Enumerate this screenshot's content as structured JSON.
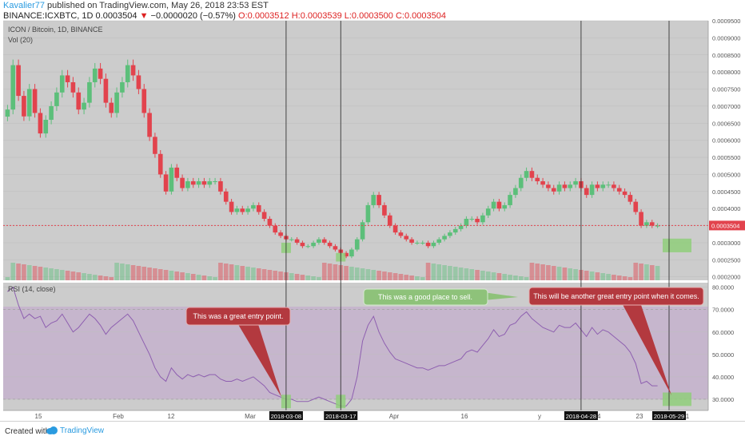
{
  "header": {
    "author": "Kavalier77",
    "published_text": "published on TradingView.com, May 26, 2018 23:53 EST",
    "symbol_line": "BINANCE:ICXBTC, 1D 0.0003504",
    "change": "−0.0000020 (−0.57%)",
    "ohlc": "O:0.0003512 H:0.0003539 L:0.0003500 C:0.0003504"
  },
  "footer": {
    "created": "Created with",
    "brand": "TradingView"
  },
  "colors": {
    "up": "#5cbf7a",
    "down": "#e2434d",
    "panel_bg": "#cccccc",
    "rsi_band": "#c4b2cd",
    "rsi_line": "#8e5fb0",
    "annotation_red": "#b3393f",
    "annotation_green": "#8ec27a",
    "zone_green": "#8fce7a"
  },
  "chart_data": [
    {
      "type": "candlestick",
      "title": "ICON / Bitcoin, 1D, BINANCE",
      "volume_label": "Vol (20)",
      "ylim": [
        0.00019,
        0.00095
      ],
      "y_ticks": [
        "0.0009500",
        "0.0009000",
        "0.0008500",
        "0.0008000",
        "0.0007500",
        "0.0007000",
        "0.0006500",
        "0.0006000",
        "0.0005500",
        "0.0005000",
        "0.0004500",
        "0.0004000",
        "0.0003500",
        "0.0003000",
        "0.0002500",
        "0.0002000"
      ],
      "last_price_label": "0.0003504",
      "last_price": 0.0003504,
      "x_ticks": [
        "15",
        "Feb",
        "12",
        "Mar",
        "2",
        "Apr",
        "16",
        "y",
        "14",
        "23",
        "1"
      ],
      "date_markers": [
        "2018-03-08",
        "2018-03-17",
        "2018-04-28",
        "2018-05-29"
      ],
      "closes": [
        0.00069,
        0.00082,
        0.00073,
        0.00067,
        0.00075,
        0.00068,
        0.00062,
        0.00066,
        0.0007,
        0.00074,
        0.00079,
        0.00077,
        0.00074,
        0.00069,
        0.00071,
        0.00077,
        0.00081,
        0.00078,
        0.00071,
        0.00068,
        0.00074,
        0.00077,
        0.00082,
        0.00079,
        0.00075,
        0.00068,
        0.00061,
        0.00056,
        0.0005,
        0.00045,
        0.00052,
        0.00049,
        0.00046,
        0.00048,
        0.00047,
        0.00048,
        0.00047,
        0.00048,
        0.00048,
        0.00045,
        0.00042,
        0.00039,
        0.0004,
        0.00039,
        0.0004,
        0.00041,
        0.00039,
        0.00037,
        0.00035,
        0.00033,
        0.00032,
        0.00031,
        0.00031,
        0.0003,
        0.00029,
        0.00029,
        0.0003,
        0.00031,
        0.0003,
        0.00029,
        0.00028,
        0.00027,
        0.00026,
        0.00028,
        0.00031,
        0.00036,
        0.00041,
        0.00044,
        0.00041,
        0.00038,
        0.00035,
        0.00033,
        0.00032,
        0.00031,
        0.0003,
        0.0003,
        0.0003,
        0.00029,
        0.0003,
        0.00031,
        0.00032,
        0.00033,
        0.00034,
        0.00035,
        0.00037,
        0.00037,
        0.00036,
        0.00038,
        0.0004,
        0.00042,
        0.0004,
        0.00041,
        0.00044,
        0.00046,
        0.00049,
        0.00051,
        0.00049,
        0.00048,
        0.00047,
        0.00046,
        0.00045,
        0.00047,
        0.00046,
        0.00047,
        0.00048,
        0.00046,
        0.00044,
        0.00047,
        0.00046,
        0.00047,
        0.00047,
        0.00046,
        0.00045,
        0.00044,
        0.00042,
        0.00039,
        0.00035,
        0.00036,
        0.00035,
        0.00035
      ]
    },
    {
      "type": "line",
      "title": "RSI (14, close)",
      "ylim": [
        25,
        82
      ],
      "y_ticks": [
        "80.0000",
        "70.0000",
        "60.0000",
        "50.0000",
        "40.0000",
        "30.0000"
      ],
      "band": [
        30,
        70
      ],
      "values": [
        78,
        80,
        72,
        66,
        68,
        66,
        67,
        62,
        64,
        65,
        68,
        64,
        60,
        62,
        65,
        68,
        66,
        63,
        59,
        62,
        64,
        66,
        68,
        65,
        60,
        55,
        50,
        44,
        40,
        38,
        44,
        41,
        39,
        41,
        40,
        41,
        40,
        41,
        41,
        39,
        38,
        38,
        39,
        38,
        39,
        40,
        38,
        36,
        33,
        32,
        31,
        30,
        30,
        29,
        29,
        29,
        30,
        31,
        30,
        29,
        28,
        27,
        27,
        30,
        40,
        56,
        63,
        67,
        60,
        55,
        51,
        48,
        47,
        46,
        45,
        44,
        44,
        43,
        44,
        45,
        45,
        46,
        47,
        48,
        51,
        52,
        51,
        54,
        57,
        61,
        58,
        59,
        63,
        64,
        67,
        69,
        66,
        64,
        62,
        61,
        60,
        63,
        62,
        62,
        64,
        61,
        58,
        62,
        59,
        61,
        60,
        58,
        56,
        54,
        51,
        46,
        37,
        38,
        36,
        36
      ]
    }
  ],
  "annotations": {
    "entry1": "This was a great entry point.",
    "sell": "This was a good place to sell.",
    "entry2": "This will be another great entry point when it comes."
  }
}
